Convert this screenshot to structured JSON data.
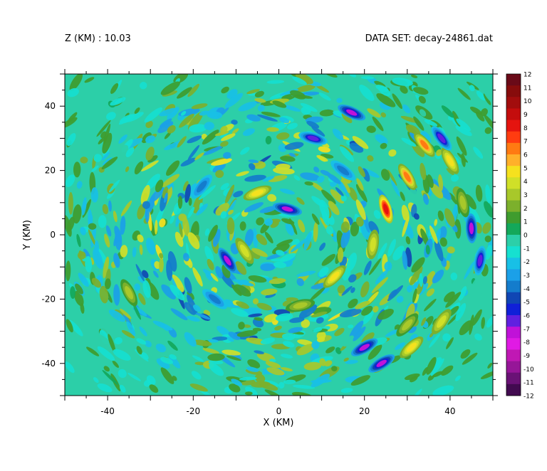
{
  "header": {
    "left": "Z (KM) : 10.03",
    "right": "DATA SET: decay-24861.dat"
  },
  "chart_data": {
    "type": "heatmap",
    "title": "",
    "xlabel": "X (KM)",
    "ylabel": "Y (KM)",
    "xlim": [
      -50,
      50
    ],
    "ylim": [
      -50,
      50
    ],
    "x_ticks": [
      -40,
      -20,
      0,
      20,
      40
    ],
    "y_ticks": [
      -40,
      -20,
      0,
      20,
      40
    ],
    "x_tick_labels": [
      "-40",
      "-20",
      "0",
      "20",
      "40"
    ],
    "y_tick_labels": [
      "-40",
      "-20",
      "0",
      "20",
      "40"
    ],
    "grid": false,
    "colorbar": {
      "min": -12,
      "max": 12,
      "labels": [
        "12",
        "11",
        "10",
        "9",
        "8",
        "7",
        "6",
        "5",
        "4",
        "3",
        "2",
        "1",
        "0",
        "-1",
        "-2",
        "-3",
        "-4",
        "-5",
        "-6",
        "-7",
        "-8",
        "-9",
        "-10",
        "-11",
        "-12"
      ],
      "colors": [
        "#6a0a18",
        "#870c0c",
        "#a20d0d",
        "#c40d0d",
        "#e5140f",
        "#ff3c10",
        "#ff7a12",
        "#ffb02a",
        "#f5e11e",
        "#d0e028",
        "#a8c82a",
        "#7cb02c",
        "#3f9c2e",
        "#14a85a",
        "#2ccfa8",
        "#16e0d0",
        "#18c0e6",
        "#1ba0e8",
        "#147ccc",
        "#1046b4",
        "#1020d8",
        "#6020e0",
        "#c012d8",
        "#e01ae4",
        "#c018b4",
        "#961698",
        "#6a1276",
        "#420a50"
      ]
    },
    "features": [
      {
        "x": 25,
        "y": 8,
        "value": 9
      },
      {
        "x": 34,
        "y": 28,
        "value": 7
      },
      {
        "x": 45,
        "y": 2,
        "value": -8
      },
      {
        "x": 17,
        "y": 38,
        "value": -8
      },
      {
        "x": 24,
        "y": -40,
        "value": -8
      },
      {
        "x": 30,
        "y": 18,
        "value": 7
      },
      {
        "x": 40,
        "y": 23,
        "value": 6
      },
      {
        "x": -5,
        "y": 13,
        "value": 6
      },
      {
        "x": 2,
        "y": 8,
        "value": -8
      },
      {
        "x": -12,
        "y": -8,
        "value": -8
      },
      {
        "x": 20,
        "y": -35,
        "value": -8
      },
      {
        "x": 13,
        "y": -13,
        "value": 6
      },
      {
        "x": 22,
        "y": -3,
        "value": 5
      },
      {
        "x": -8,
        "y": -5,
        "value": 5
      },
      {
        "x": 8,
        "y": 30,
        "value": -7
      },
      {
        "x": 38,
        "y": -27,
        "value": 5
      },
      {
        "x": 31,
        "y": -35,
        "value": 6
      },
      {
        "x": 47,
        "y": -8,
        "value": -7
      },
      {
        "x": 38,
        "y": 30,
        "value": -7
      },
      {
        "x": 15,
        "y": 20,
        "value": -5
      },
      {
        "x": -18,
        "y": 15,
        "value": -5
      },
      {
        "x": -15,
        "y": -20,
        "value": -5
      },
      {
        "x": 30,
        "y": -28,
        "value": 4
      },
      {
        "x": 5,
        "y": -22,
        "value": 4
      },
      {
        "x": -35,
        "y": -18,
        "value": 4
      },
      {
        "x": 43,
        "y": 10,
        "value": 4
      }
    ]
  }
}
